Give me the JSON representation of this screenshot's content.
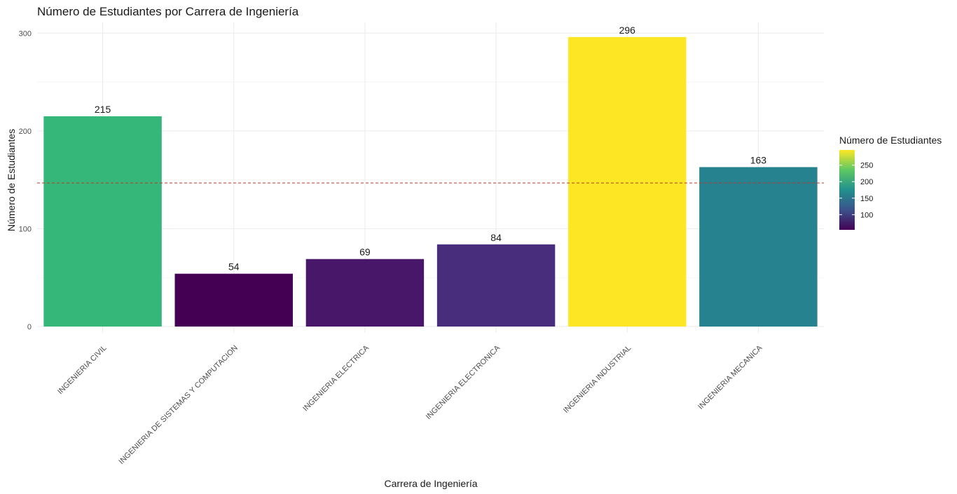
{
  "chart_data": {
    "type": "bar",
    "title": "Número de Estudiantes por Carrera de Ingeniería",
    "xlabel": "Carrera de Ingeniería",
    "ylabel": "Número de Estudiantes",
    "ylim": [
      0,
      310
    ],
    "y_ticks": [
      0,
      100,
      200,
      300
    ],
    "categories": [
      "INGENIERIA CIVIL",
      "INGENIERIA DE SISTEMAS Y COMPUTACION",
      "INGENIERIA ELECTRICA",
      "INGENIERIA ELECTRONICA",
      "INGENIERIA INDUSTRIAL",
      "INGENIERIA MECANICA"
    ],
    "values": [
      215,
      54,
      69,
      84,
      296,
      163
    ],
    "data_labels": [
      "215",
      "54",
      "69",
      "84",
      "296",
      "163"
    ],
    "colors": [
      "#35b779",
      "#440154",
      "#481769",
      "#472d7b",
      "#fde725",
      "#26828e"
    ],
    "reference_line": {
      "value": 146.8,
      "style": "dashed",
      "color": "#c0392b"
    },
    "grid": true,
    "legend": {
      "title": "Número de Estudiantes",
      "placement": "right",
      "type": "colorbar",
      "range": [
        54,
        296
      ],
      "ticks": [
        100,
        150,
        200,
        250
      ],
      "gradient": [
        "#440154",
        "#3b528b",
        "#21908d",
        "#5dc863",
        "#fde725"
      ]
    }
  }
}
